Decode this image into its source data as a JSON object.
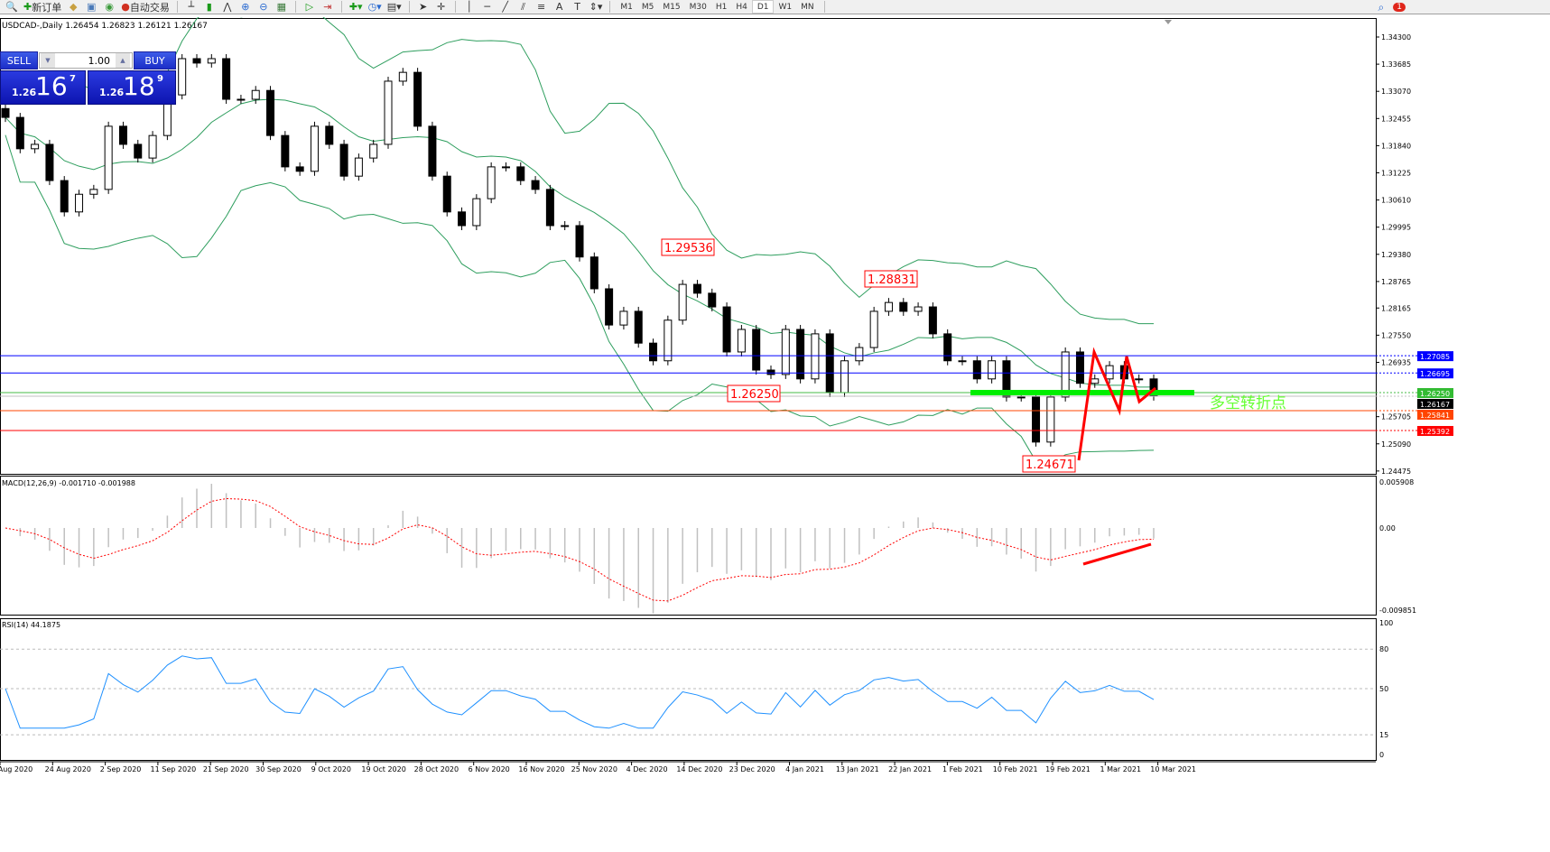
{
  "toolbar": {
    "items": [
      {
        "icon": "zoom-window-icon"
      },
      {
        "label": "新订单",
        "icon": "new-order-icon"
      },
      {
        "icon": "market-watch-icon"
      },
      {
        "icon": "navigator-icon"
      },
      {
        "icon": "signal-icon"
      },
      {
        "label": "自动交易",
        "icon": "autotrading-icon"
      }
    ],
    "timeframes": [
      "M1",
      "M5",
      "M15",
      "M30",
      "H1",
      "H4",
      "D1",
      "W1",
      "MN"
    ],
    "active_timeframe": "D1",
    "notification_count": "1"
  },
  "chart": {
    "title": "USDCAD-,Daily  1.26454 1.26823 1.26121 1.26167",
    "trade_panel": {
      "sell": "SELL",
      "buy": "BUY",
      "lot": "1.00",
      "bid": {
        "big": "1.26",
        "mid": "16",
        "small": "7"
      },
      "ask": {
        "big": "1.26",
        "mid": "18",
        "small": "9"
      }
    },
    "price_ticks": [
      "1.34300",
      "1.33685",
      "1.33070",
      "1.32455",
      "1.31840",
      "1.31225",
      "1.30610",
      "1.29995",
      "1.29380",
      "1.28765",
      "1.28165",
      "1.27550",
      "1.26935",
      "1.25705",
      "1.25090",
      "1.24475"
    ],
    "hlines": [
      {
        "price": "1.27085",
        "color": "#0000ff",
        "label_bg": "#0000ff"
      },
      {
        "price": "1.26695",
        "color": "#0000ff",
        "label_bg": "#0000ff"
      },
      {
        "price": "1.26250",
        "color": "#44bb44",
        "label_bg": "#33bb33"
      },
      {
        "price": "1.26167",
        "color": "#c0c0c0",
        "label_bg": "#000000"
      },
      {
        "price": "1.25841",
        "color": "#ff4500",
        "label_bg": "#ff4500"
      },
      {
        "price": "1.25392",
        "color": "#ff0000",
        "label_bg": "#ff0000"
      }
    ],
    "annotations": [
      {
        "text": "1.29536",
        "price": 1.29536
      },
      {
        "text": "1.28831",
        "price": 1.28831
      },
      {
        "text": "1.26250",
        "price": 1.2625
      },
      {
        "text": "1.24671",
        "price": 1.24671
      }
    ],
    "zone_label": "多空转折点",
    "zone_color": "#00ee00",
    "dates": [
      "Aug 2020",
      "24 Aug 2020",
      "2 Sep 2020",
      "11 Sep 2020",
      "21 Sep 2020",
      "30 Sep 2020",
      "9 Oct 2020",
      "19 Oct 2020",
      "28 Oct 2020",
      "6 Nov 2020",
      "16 Nov 2020",
      "25 Nov 2020",
      "4 Dec 2020",
      "14 Dec 2020",
      "23 Dec 2020",
      "4 Jan 2021",
      "13 Jan 2021",
      "22 Jan 2021",
      "1 Feb 2021",
      "10 Feb 2021",
      "19 Feb 2021",
      "1 Mar 2021",
      "10 Mar 2021"
    ]
  },
  "macd": {
    "label": "MACD(12,26,9) -0.001710 -0.001988",
    "ticks": [
      "0.005908",
      "0.00",
      "-0.009851"
    ]
  },
  "rsi": {
    "label": "RSI(14) 44.1875",
    "ticks": [
      "100",
      "80",
      "50",
      "15",
      "0"
    ]
  },
  "chart_data": {
    "type": "candlestick",
    "symbol": "USDCAD",
    "timeframe": "Daily",
    "x_range": [
      "Aug 2020",
      "10 Mar 2021"
    ],
    "ylim": [
      1.24475,
      1.346
    ],
    "closes": [
      1.3248,
      1.3177,
      1.3187,
      1.3105,
      1.3034,
      1.3074,
      1.3085,
      1.3228,
      1.3187,
      1.3156,
      1.3207,
      1.3299,
      1.3381,
      1.3371,
      1.3381,
      1.3289,
      1.3289,
      1.3309,
      1.3207,
      1.3136,
      1.3126,
      1.3228,
      1.3187,
      1.3115,
      1.3156,
      1.3187,
      1.333,
      1.335,
      1.3228,
      1.3115,
      1.3034,
      1.3003,
      1.3064,
      1.3136,
      1.3136,
      1.3105,
      1.3085,
      1.3003,
      1.3003,
      1.2932,
      1.286,
      1.2778,
      1.2809,
      1.2737,
      1.2697,
      1.2789,
      1.287,
      1.285,
      1.2819,
      1.2717,
      1.2768,
      1.2676,
      1.2666,
      1.2768,
      1.2656,
      1.2758,
      1.2625,
      1.2697,
      1.2727,
      1.2809,
      1.2829,
      1.2809,
      1.2819,
      1.2758,
      1.2697,
      1.2697,
      1.2656,
      1.2697,
      1.2615,
      1.2615,
      1.2513,
      1.2615,
      1.2717,
      1.2646,
      1.2656,
      1.2686,
      1.2656,
      1.2656,
      1.2617
    ],
    "indicators": [
      "Bollinger Bands",
      "MACD(12,26,9)",
      "RSI(14)"
    ],
    "colors": {
      "bands": "#2e9e5e",
      "macd_hist": "#c0c0c0",
      "macd_signal": "#ff0000",
      "rsi": "#1e90ff",
      "arrows": "#ff0000"
    }
  }
}
